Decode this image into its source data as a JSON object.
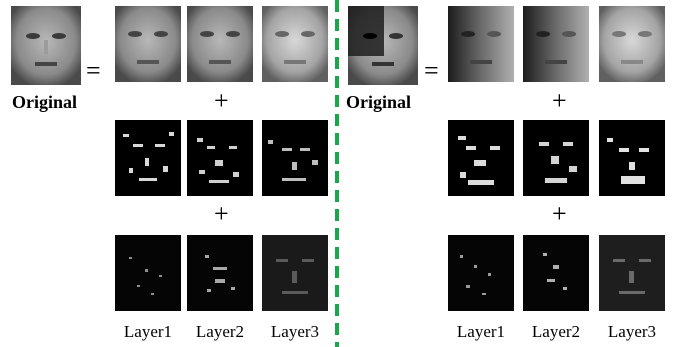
{
  "equals_symbol": "=",
  "plus_symbol": "+",
  "panels": [
    {
      "original_label": "Original",
      "layer_labels": [
        "Layer1",
        "Layer2",
        "Layer3"
      ]
    },
    {
      "original_label": "Original",
      "layer_labels": [
        "Layer1",
        "Layer2",
        "Layer3"
      ]
    }
  ],
  "colors": {
    "divider": "#1aa64a",
    "background": "#ffffff"
  }
}
